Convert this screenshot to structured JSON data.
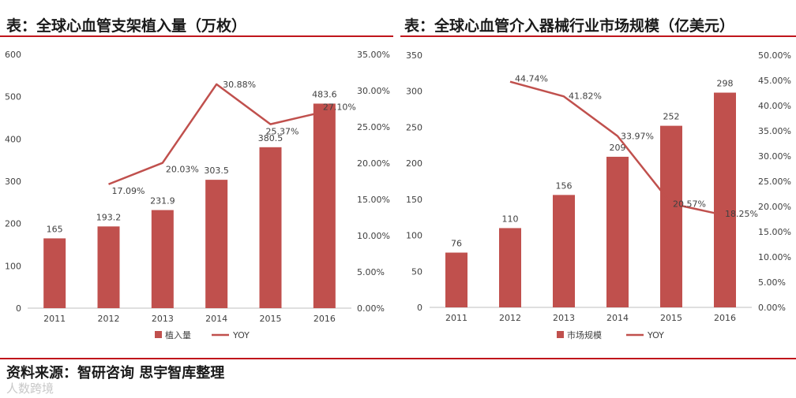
{
  "charts": [
    {
      "title": "表：全球心血管支架植入量（万枚）",
      "chart_data": {
        "type": "bar",
        "categories": [
          "2011",
          "2012",
          "2013",
          "2014",
          "2015",
          "2016"
        ],
        "series": [
          {
            "name": "植入量",
            "type": "bar",
            "axis": "left",
            "values": [
              165,
              193.2,
              231.9,
              303.5,
              380.5,
              483.6
            ],
            "labels": [
              "165",
              "193.2",
              "231.9",
              "303.5",
              "380.5",
              "483.6"
            ]
          },
          {
            "name": "YOY",
            "type": "line",
            "axis": "right",
            "values": [
              null,
              17.09,
              20.03,
              30.88,
              25.37,
              27.1
            ],
            "labels": [
              null,
              "17.09%",
              "20.03%",
              "30.88%",
              "25.37%",
              "27.10%"
            ]
          }
        ],
        "ylim": [
          0,
          600
        ],
        "y_ticks": [
          "0",
          "100",
          "200",
          "300",
          "400",
          "500",
          "600"
        ],
        "y2lim": [
          0,
          35
        ],
        "y2_ticks": [
          "0.00%",
          "5.00%",
          "10.00%",
          "15.00%",
          "20.00%",
          "25.00%",
          "30.00%",
          "35.00%"
        ],
        "legend": "bottom",
        "grid": false
      }
    },
    {
      "title": "表：全球心血管介入器械行业市场规模（亿美元）",
      "chart_data": {
        "type": "bar",
        "categories": [
          "2011",
          "2012",
          "2013",
          "2014",
          "2015",
          "2016"
        ],
        "series": [
          {
            "name": "市场规模",
            "type": "bar",
            "axis": "left",
            "values": [
              76,
              110,
              156,
              209,
              252,
              298
            ],
            "labels": [
              "76",
              "110",
              "156",
              "209",
              "252",
              "298"
            ]
          },
          {
            "name": "YOY",
            "type": "line",
            "axis": "right",
            "values": [
              null,
              44.74,
              41.82,
              33.97,
              20.57,
              18.25
            ],
            "labels": [
              null,
              "44.74%",
              "41.82%",
              "33.97%",
              "20.57%",
              "18.25%"
            ]
          }
        ],
        "ylim": [
          0,
          350
        ],
        "y_ticks": [
          "0",
          "50",
          "100",
          "150",
          "200",
          "250",
          "300",
          "350"
        ],
        "y2lim": [
          0,
          50
        ],
        "y2_ticks": [
          "0.00%",
          "5.00%",
          "10.00%",
          "15.00%",
          "20.00%",
          "25.00%",
          "30.00%",
          "35.00%",
          "40.00%",
          "45.00%",
          "50.00%"
        ],
        "legend": "bottom",
        "grid": false
      }
    }
  ],
  "source": "资料来源：智研咨询   思宇智库整理",
  "watermark": "人数跨境",
  "colors": {
    "bar": "#c0504d",
    "line": "#c0504d",
    "rule": "#c0151b",
    "text": "#404040"
  }
}
